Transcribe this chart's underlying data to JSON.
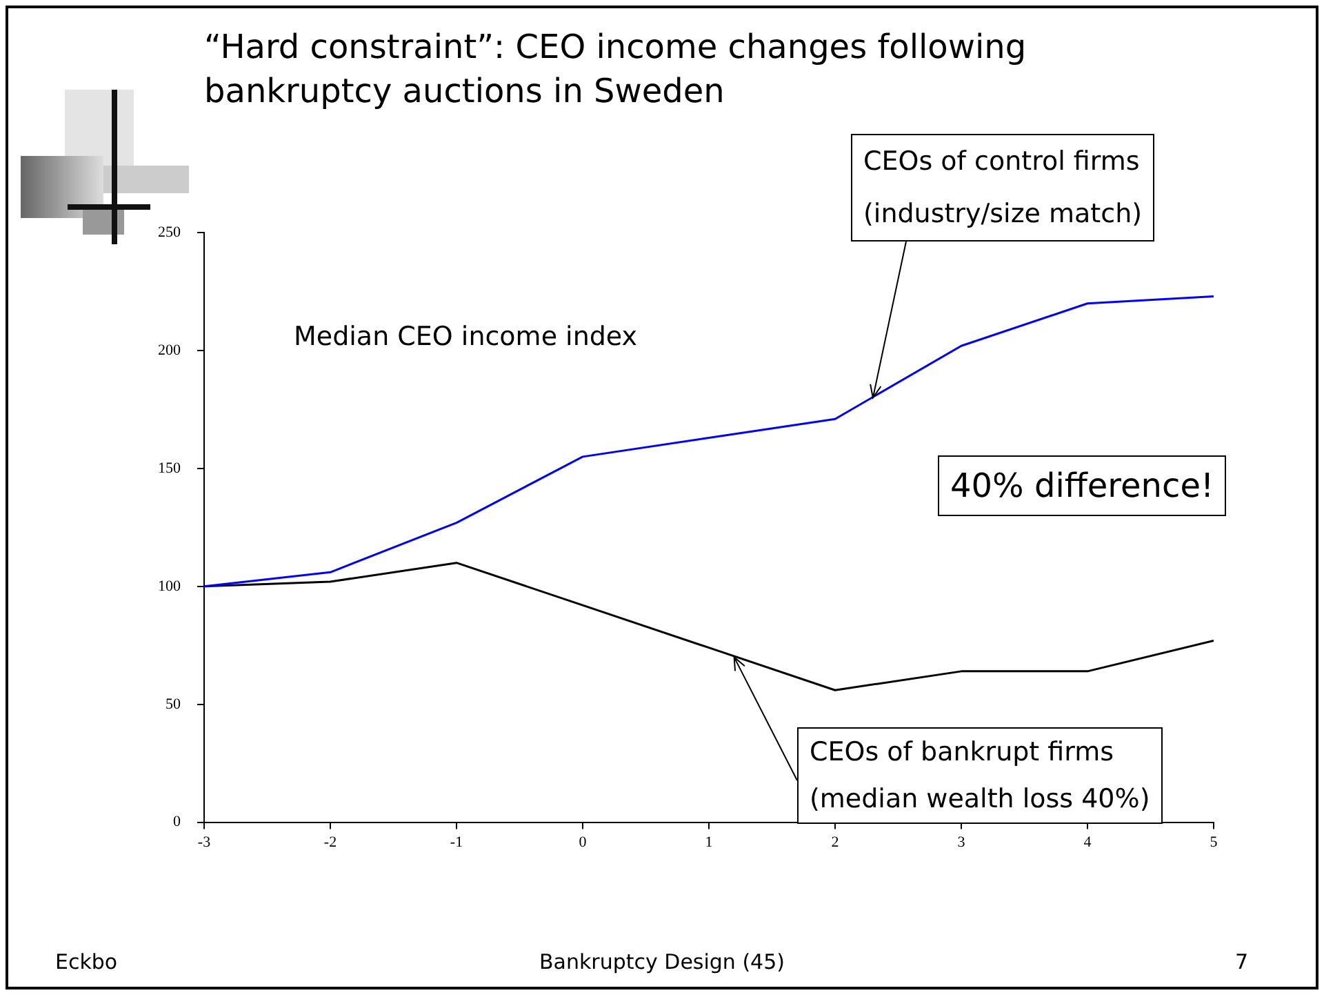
{
  "chart_data": {
    "type": "line",
    "title": "“Hard constraint”: CEO income changes following bankruptcy auctions in Sweden",
    "ylabel": "Median CEO income index",
    "x": [
      -3,
      -2,
      -1,
      0,
      1,
      2,
      3,
      4,
      5
    ],
    "series": [
      {
        "color": "#0000ff",
        "values": [
          100,
          106,
          127,
          155,
          163,
          171,
          202,
          220,
          223
        ]
      },
      {
        "color": "#000000",
        "values": [
          100,
          102,
          110,
          92,
          74,
          56,
          64,
          64,
          77
        ]
      }
    ],
    "xlim": [
      -3,
      5
    ],
    "xticks": [
      -3,
      -2,
      -1,
      0,
      1,
      2,
      3,
      4,
      5
    ],
    "ylim": [
      0,
      250
    ],
    "yticks": [
      0,
      50,
      100,
      150,
      200,
      250
    ],
    "grid": false,
    "legend": false,
    "marker": "none",
    "line_style": "solid",
    "annotations": [
      {
        "text": "CEOs of control firms\n(industry/size match)",
        "x": 2.3,
        "y": 180
      },
      {
        "text": "40% difference!"
      },
      {
        "text": "CEOs of bankrupt firms\n(median wealth loss 40%)",
        "x": 1.2,
        "y": 70
      },
      "Eckbo",
      "Bankruptcy Design (45)",
      "7"
    ]
  }
}
